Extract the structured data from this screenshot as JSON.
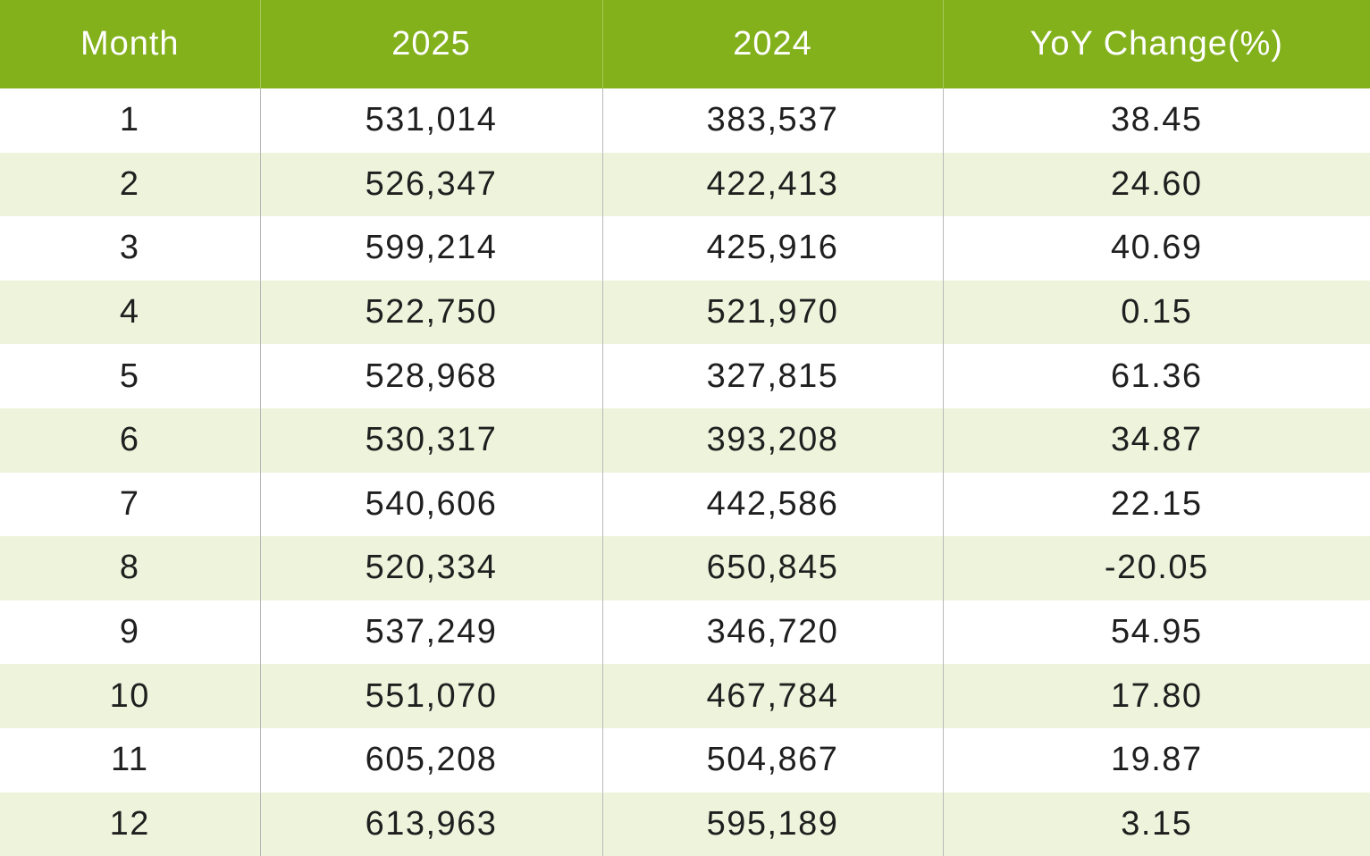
{
  "chart_data": {
    "type": "table",
    "columns": [
      "Month",
      "2025",
      "2024",
      "YoY Change(%)"
    ],
    "rows": [
      [
        "1",
        "531,014",
        "383,537",
        "38.45"
      ],
      [
        "2",
        "526,347",
        "422,413",
        "24.60"
      ],
      [
        "3",
        "599,214",
        "425,916",
        "40.69"
      ],
      [
        "4",
        "522,750",
        "521,970",
        "0.15"
      ],
      [
        "5",
        "528,968",
        "327,815",
        "61.36"
      ],
      [
        "6",
        "530,317",
        "393,208",
        "34.87"
      ],
      [
        "7",
        "540,606",
        "442,586",
        "22.15"
      ],
      [
        "8",
        "520,334",
        "650,845",
        "-20.05"
      ],
      [
        "9",
        "537,249",
        "346,720",
        "54.95"
      ],
      [
        "10",
        "551,070",
        "467,784",
        "17.80"
      ],
      [
        "11",
        "605,208",
        "504,867",
        "19.87"
      ],
      [
        "12",
        "613,963",
        "595,189",
        "3.15"
      ]
    ]
  },
  "colors": {
    "header_bg": "#82b11c",
    "header_text": "#ffffff",
    "stripe_bg": "#eef4dc",
    "row_bg": "#ffffff",
    "text": "#1f1f1f"
  }
}
